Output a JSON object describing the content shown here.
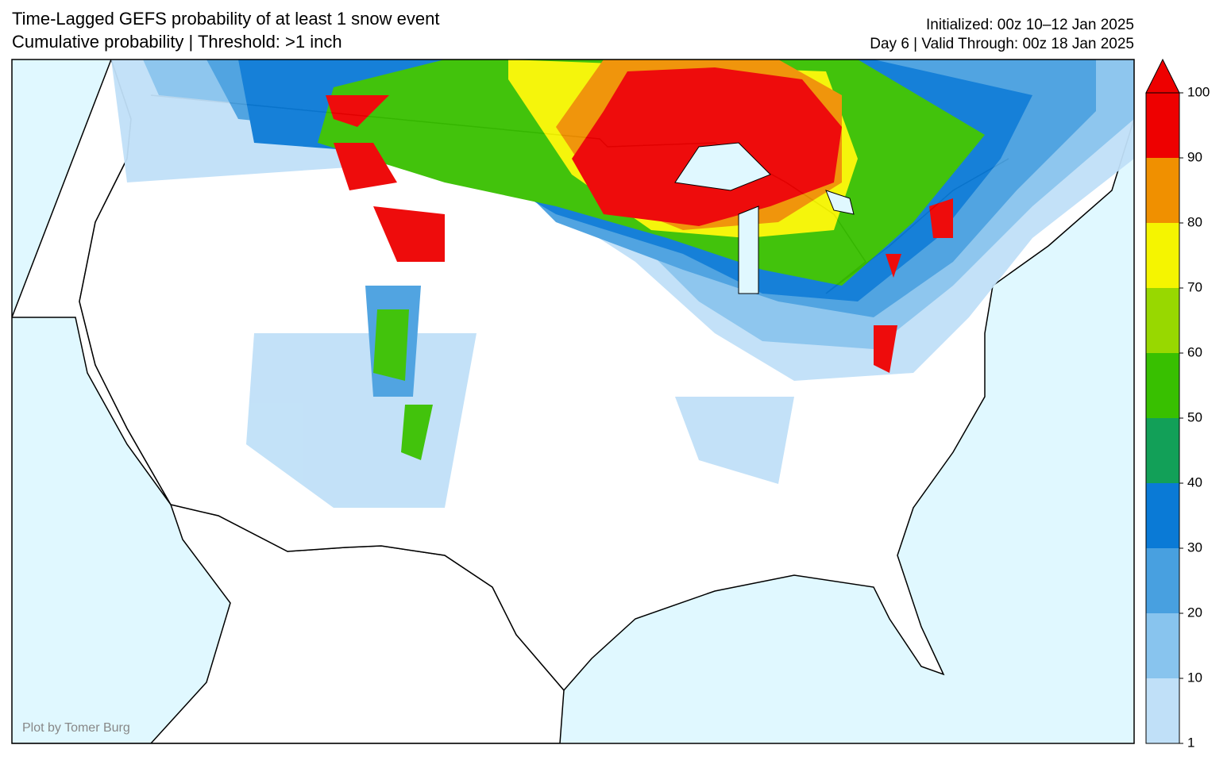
{
  "header": {
    "title": "Time-Lagged GEFS probability of at least 1 snow event",
    "subtitle": "Cumulative probability | Threshold: >1 inch",
    "initialized": "Initialized: 00z 10–12 Jan 2025",
    "valid": "Day 6 | Valid Through: 00z 18 Jan 2025"
  },
  "credit": "Plot by Tomer Burg",
  "colorbar": {
    "ticks": [
      1,
      10,
      20,
      30,
      40,
      50,
      60,
      70,
      80,
      90,
      100
    ],
    "colors": [
      "#c0e0f8",
      "#88c4ee",
      "#48a0e0",
      "#0a7ad6",
      "#12a058",
      "#38c000",
      "#98d800",
      "#f5f500",
      "#f09000",
      "#ee0000"
    ]
  }
}
